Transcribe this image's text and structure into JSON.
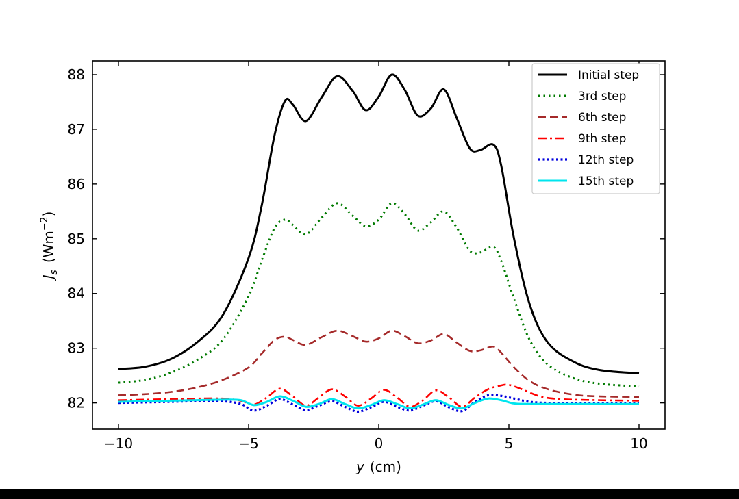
{
  "chart_data": {
    "type": "line",
    "xlabel_var": "y",
    "xlabel_unit": "(cm)",
    "ylabel_var": "J",
    "ylabel_sub": "s",
    "ylabel_unit_pre": "(Wm",
    "ylabel_unit_exp": "−2",
    "ylabel_unit_post": ")",
    "xlim": [
      -11,
      11
    ],
    "ylim": [
      81.52,
      88.25
    ],
    "xticks": [
      -10,
      -5,
      0,
      5,
      10
    ],
    "xtick_labels": [
      "−10",
      "−5",
      "0",
      "5",
      "10"
    ],
    "yticks": [
      82,
      83,
      84,
      85,
      86,
      87,
      88
    ],
    "ytick_labels": [
      "82",
      "83",
      "84",
      "85",
      "86",
      "87",
      "88"
    ],
    "grid": false,
    "legend_position": "top-right",
    "series": [
      {
        "name": "Initial step",
        "color": "#000000",
        "dash": "solid",
        "x": [
          -10,
          -9,
          -8,
          -7,
          -6,
          -5,
          -4.5,
          -4,
          -3.6,
          -3.3,
          -2.8,
          -2.2,
          -1.6,
          -1,
          -0.5,
          0,
          0.5,
          1,
          1.5,
          2,
          2.5,
          3,
          3.5,
          3.9,
          4.4,
          4.7,
          5.2,
          5.8,
          6.5,
          7.5,
          8.5,
          10
        ],
        "y": [
          82.62,
          82.66,
          82.8,
          83.1,
          83.6,
          84.65,
          85.6,
          86.9,
          87.52,
          87.45,
          87.15,
          87.58,
          87.97,
          87.7,
          87.35,
          87.6,
          88.0,
          87.72,
          87.25,
          87.38,
          87.73,
          87.2,
          86.65,
          86.62,
          86.72,
          86.35,
          85.0,
          83.8,
          83.1,
          82.75,
          82.6,
          82.54
        ]
      },
      {
        "name": "3rd step",
        "color": "#007a00",
        "dash": "dotted",
        "x": [
          -10,
          -9,
          -8,
          -7,
          -6,
          -5,
          -4.5,
          -4,
          -3.6,
          -3.3,
          -2.8,
          -2.2,
          -1.6,
          -1,
          -0.5,
          0,
          0.5,
          1,
          1.5,
          2,
          2.5,
          3,
          3.5,
          3.9,
          4.4,
          4.7,
          5.2,
          5.8,
          6.5,
          7.5,
          8.5,
          10
        ],
        "y": [
          82.37,
          82.42,
          82.55,
          82.78,
          83.15,
          83.95,
          84.6,
          85.2,
          85.35,
          85.25,
          85.08,
          85.38,
          85.65,
          85.42,
          85.23,
          85.35,
          85.65,
          85.45,
          85.15,
          85.3,
          85.5,
          85.2,
          84.78,
          84.75,
          84.85,
          84.6,
          83.9,
          83.15,
          82.7,
          82.45,
          82.35,
          82.3
        ]
      },
      {
        "name": "6th step",
        "color": "#a52a2a",
        "dash": "dashed",
        "x": [
          -10,
          -9,
          -8,
          -7,
          -6,
          -5,
          -4.5,
          -4,
          -3.6,
          -3.3,
          -2.8,
          -2.2,
          -1.6,
          -1,
          -0.5,
          0,
          0.5,
          1,
          1.5,
          2,
          2.5,
          3,
          3.5,
          3.9,
          4.4,
          4.7,
          5.2,
          5.8,
          6.5,
          7.5,
          8.5,
          10
        ],
        "y": [
          82.14,
          82.16,
          82.2,
          82.28,
          82.42,
          82.65,
          82.9,
          83.15,
          83.21,
          83.15,
          83.06,
          83.2,
          83.32,
          83.22,
          83.12,
          83.18,
          83.32,
          83.22,
          83.09,
          83.14,
          83.26,
          83.1,
          82.95,
          82.96,
          83.03,
          82.92,
          82.65,
          82.4,
          82.25,
          82.15,
          82.12,
          82.11
        ]
      },
      {
        "name": "9th step",
        "color": "#ff0000",
        "dash": "dashdot",
        "x": [
          -10,
          -9,
          -8,
          -7,
          -6,
          -5.3,
          -4.8,
          -4.3,
          -3.8,
          -3.3,
          -2.8,
          -2.3,
          -1.8,
          -1.3,
          -0.8,
          -0.3,
          0.2,
          0.7,
          1.2,
          1.7,
          2.2,
          2.7,
          3.2,
          3.7,
          4.2,
          4.7,
          5.0,
          5.5,
          6.2,
          7,
          8.5,
          10
        ],
        "y": [
          82.05,
          82.06,
          82.07,
          82.08,
          82.08,
          82.04,
          81.97,
          82.1,
          82.26,
          82.12,
          81.95,
          82.1,
          82.25,
          82.12,
          81.95,
          82.08,
          82.24,
          82.1,
          81.93,
          82.05,
          82.23,
          82.1,
          81.93,
          82.1,
          82.25,
          82.32,
          82.33,
          82.25,
          82.12,
          82.07,
          82.05,
          82.04
        ]
      },
      {
        "name": "12th step",
        "color": "#0000dd",
        "dash": "dotted-heavy",
        "x": [
          -10,
          -9,
          -8,
          -7,
          -6,
          -5.3,
          -4.8,
          -4.3,
          -3.8,
          -3.3,
          -2.8,
          -2.3,
          -1.8,
          -1.3,
          -0.8,
          -0.3,
          0.2,
          0.7,
          1.2,
          1.7,
          2.2,
          2.7,
          3.2,
          3.7,
          4.2,
          4.7,
          5.2,
          5.8,
          6.5,
          7.5,
          8.5,
          10
        ],
        "y": [
          82.0,
          82.01,
          82.02,
          82.03,
          82.03,
          81.98,
          81.86,
          81.95,
          82.07,
          81.97,
          81.87,
          81.95,
          82.03,
          81.93,
          81.84,
          81.92,
          82.02,
          81.93,
          81.86,
          81.95,
          82.03,
          81.92,
          81.85,
          82.02,
          82.14,
          82.13,
          82.08,
          82.02,
          82.0,
          81.99,
          81.99,
          81.99
        ]
      },
      {
        "name": "15th step",
        "color": "#00e5ee",
        "dash": "solid",
        "x": [
          -10,
          -9,
          -8,
          -7,
          -6,
          -5.3,
          -4.8,
          -4.3,
          -3.8,
          -3.3,
          -2.8,
          -2.3,
          -1.8,
          -1.3,
          -0.8,
          -0.3,
          0.2,
          0.7,
          1.2,
          1.7,
          2.2,
          2.7,
          3.2,
          3.7,
          4.2,
          4.7,
          5.2,
          5.8,
          6.5,
          7.5,
          8.5,
          10
        ],
        "y": [
          82.02,
          82.03,
          82.04,
          82.05,
          82.06,
          82.05,
          81.96,
          82.02,
          82.12,
          82.04,
          81.93,
          81.98,
          82.07,
          81.98,
          81.9,
          81.96,
          82.05,
          81.98,
          81.9,
          81.97,
          82.05,
          81.96,
          81.9,
          82.0,
          82.08,
          82.05,
          81.99,
          81.98,
          81.98,
          81.98,
          81.98,
          81.98
        ]
      }
    ]
  }
}
